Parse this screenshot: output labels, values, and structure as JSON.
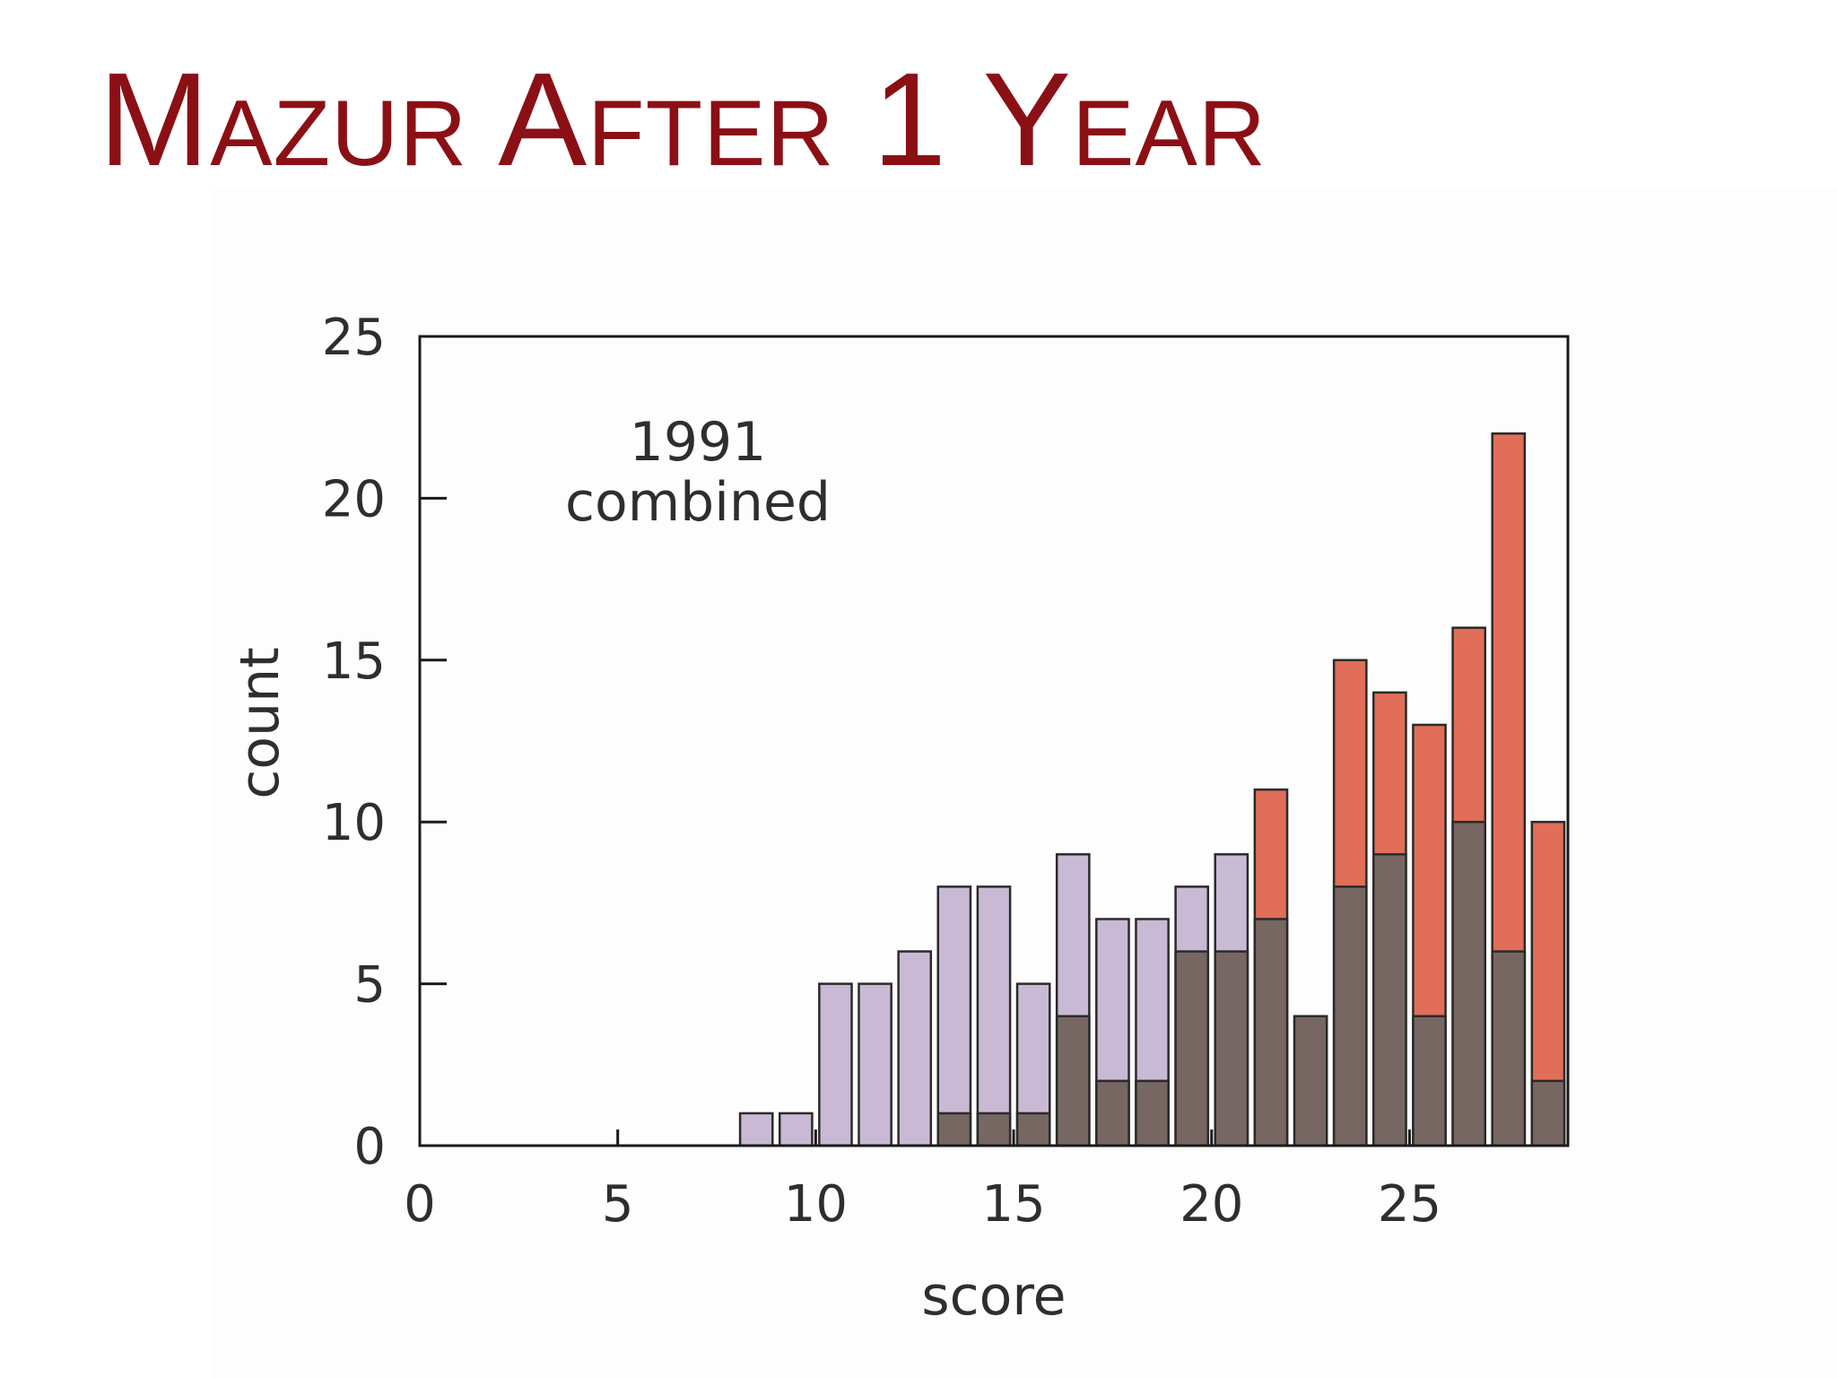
{
  "title": "Mazur After 1 Year",
  "chart_data": {
    "type": "bar",
    "xlabel": "score",
    "ylabel": "count",
    "annotation": [
      "1991",
      "combined"
    ],
    "xlim": [
      0,
      29
    ],
    "ylim": [
      0,
      25
    ],
    "xticks": [
      0,
      5,
      10,
      15,
      20,
      25
    ],
    "yticks": [
      0,
      5,
      10,
      15,
      20,
      25
    ],
    "grid": false,
    "x": [
      9,
      10,
      11,
      12,
      13,
      14,
      15,
      16,
      17,
      18,
      19,
      20,
      21,
      22,
      23,
      24,
      25,
      26,
      27,
      28,
      29
    ],
    "series": [
      {
        "color": "#c8bad5",
        "values": [
          1,
          1,
          5,
          5,
          6,
          8,
          8,
          5,
          9,
          7,
          7,
          8,
          9,
          7,
          4,
          8,
          9,
          4,
          10,
          6,
          2
        ]
      },
      {
        "color": "#e06e58",
        "values": [
          0,
          0,
          0,
          0,
          0,
          1,
          1,
          1,
          4,
          2,
          2,
          6,
          6,
          11,
          4,
          15,
          14,
          13,
          16,
          22,
          10
        ]
      }
    ],
    "overlap_color": "#776763"
  }
}
